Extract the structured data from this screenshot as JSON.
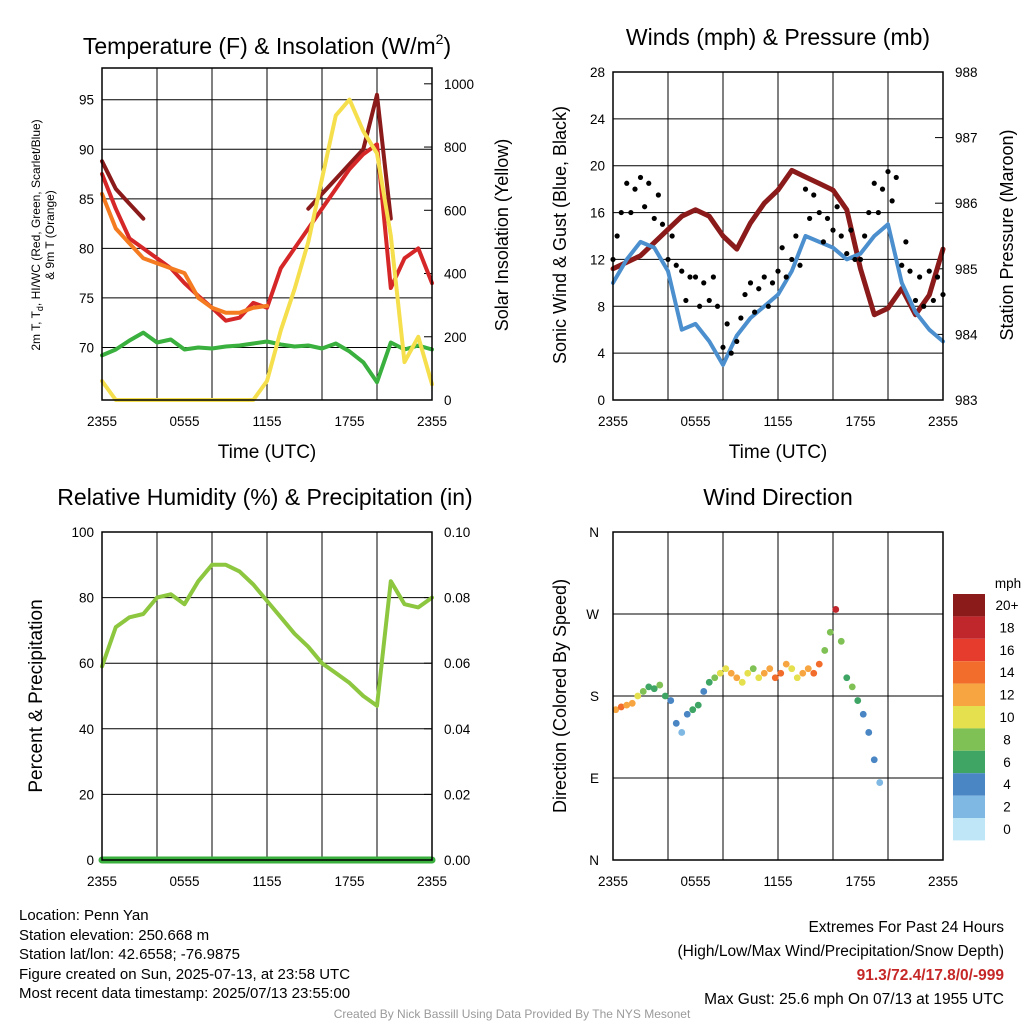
{
  "panels": {
    "temperature": {
      "title": "Temperature (F) & Insolation (W/m",
      "title_sup": "2",
      "title_close": ")",
      "ylabel_left_line1": "2m T, T",
      "ylabel_left_sub": "d",
      "ylabel_left_line1b": ", HI/WC (Red, Green, Scarlet/Blue)",
      "ylabel_left_line2": "& 9m T (Orange)",
      "ylabel_right": "Solar Insolation (Yellow)",
      "xlabel": "Time (UTC)"
    },
    "winds": {
      "title": "Winds (mph) & Pressure (mb)",
      "ylabel_left": "Sonic Wind & Gust (Blue, Black)",
      "ylabel_right": "Station Pressure (Maroon)",
      "xlabel": "Time (UTC)"
    },
    "humidity": {
      "title": "Relative Humidity (%) & Precipitation (in)",
      "ylabel_left": "Percent & Precipitation"
    },
    "direction": {
      "title": "Wind Direction",
      "ylabel_left": "Direction (Colored By Speed)",
      "legend_title": "mph"
    }
  },
  "chart_data": [
    {
      "type": "line",
      "x_ticks": [
        "2355",
        "0555",
        "1155",
        "1755",
        "2355"
      ],
      "x": [
        0,
        1,
        2,
        3,
        4,
        5,
        6,
        7,
        8,
        9,
        10,
        11,
        12,
        13,
        14,
        15,
        16,
        17,
        18,
        19,
        20,
        21,
        22,
        23,
        24
      ],
      "y_left_ticks": [
        70,
        75,
        80,
        85,
        90,
        95
      ],
      "y_left_lim": [
        64.7,
        98.2
      ],
      "y_right_ticks": [
        0,
        200,
        400,
        600,
        800,
        1000
      ],
      "y_right_lim": [
        0,
        1050
      ],
      "series": [
        {
          "color": "#8b1a1a",
          "axis": "left",
          "values": [
            88.8,
            86,
            84.5,
            83,
            null,
            null,
            null,
            null,
            null,
            null,
            null,
            null,
            null,
            null,
            null,
            84,
            85.5,
            87,
            88.5,
            90,
            95.5,
            83,
            null,
            null,
            null
          ]
        },
        {
          "color": "#d62728",
          "axis": "left",
          "values": [
            87.5,
            84,
            81,
            80,
            79,
            78,
            76.5,
            75.2,
            74,
            72.7,
            73,
            74.5,
            74,
            78,
            80,
            82,
            84,
            86,
            88,
            89.5,
            90.5,
            76,
            79,
            80,
            76.5
          ]
        },
        {
          "color": "#f47b20",
          "axis": "left",
          "values": [
            85.5,
            82,
            80.5,
            79,
            78.5,
            78,
            77.5,
            75,
            74,
            73.5,
            73.5,
            74,
            74.2,
            null,
            null,
            null,
            null,
            null,
            null,
            null,
            null,
            null,
            null,
            null,
            null
          ]
        },
        {
          "color": "#3ab03e",
          "axis": "left",
          "values": [
            69.2,
            69.8,
            70.7,
            71.5,
            70.5,
            70.8,
            69.8,
            70,
            69.9,
            70.1,
            70.2,
            70.4,
            70.6,
            70.3,
            70.1,
            70.2,
            69.9,
            70.4,
            69.6,
            68.5,
            66.5,
            70.5,
            69.8,
            70.2,
            69.8
          ]
        },
        {
          "color": "#f5df4d",
          "axis": "right",
          "values": [
            60,
            0,
            0,
            0,
            0,
            0,
            0,
            0,
            0,
            0,
            0,
            0,
            60,
            220,
            350,
            500,
            700,
            900,
            950,
            850,
            780,
            520,
            120,
            200,
            50
          ]
        }
      ]
    },
    {
      "type": "line",
      "x_ticks": [
        "2355",
        "0555",
        "1155",
        "1755",
        "2355"
      ],
      "x": [
        0,
        1,
        2,
        3,
        4,
        5,
        6,
        7,
        8,
        9,
        10,
        11,
        12,
        13,
        14,
        15,
        16,
        17,
        18,
        19,
        20,
        21,
        22,
        23,
        24
      ],
      "y_left_ticks": [
        0,
        4,
        8,
        12,
        16,
        20,
        24,
        28
      ],
      "y_left_lim": [
        0,
        28
      ],
      "y_right_ticks": [
        983,
        984,
        985,
        986,
        987,
        988
      ],
      "y_right_lim": [
        983,
        988
      ],
      "series": [
        {
          "color": "#8b1a1a",
          "axis": "right",
          "values": [
            985.0,
            985.1,
            985.2,
            985.4,
            985.6,
            985.8,
            985.9,
            985.8,
            985.5,
            985.3,
            985.7,
            986.0,
            986.2,
            986.5,
            986.4,
            986.3,
            986.2,
            985.9,
            985.0,
            984.3,
            984.4,
            984.7,
            984.3,
            984.6,
            985.3
          ]
        },
        {
          "color": "#4b8fce",
          "axis": "left",
          "values": [
            10,
            12,
            13.5,
            13,
            11,
            6,
            6.5,
            5,
            3,
            5.5,
            7,
            8,
            9,
            11,
            14,
            13.5,
            13,
            12,
            12.5,
            14,
            15,
            10,
            7.5,
            6,
            5
          ]
        },
        {
          "color": "#000000",
          "axis": "left",
          "mode": "points",
          "values": [
            14,
            17,
            18.5,
            16,
            13.5,
            9,
            9.5,
            8.5,
            5.5,
            7,
            8.5,
            10,
            11.5,
            13.5,
            16,
            15,
            14.5,
            13.5,
            14,
            17,
            19,
            12,
            10,
            9,
            8
          ]
        }
      ]
    },
    {
      "type": "line",
      "x_ticks": [
        "2355",
        "0555",
        "1155",
        "1755",
        "2355"
      ],
      "x": [
        0,
        1,
        2,
        3,
        4,
        5,
        6,
        7,
        8,
        9,
        10,
        11,
        12,
        13,
        14,
        15,
        16,
        17,
        18,
        19,
        20,
        21,
        22,
        23,
        24
      ],
      "y_left_ticks": [
        0,
        20,
        40,
        60,
        80,
        100
      ],
      "y_left_lim": [
        0,
        100
      ],
      "y_right_ticks": [
        "0.00",
        "0.02",
        "0.04",
        "0.06",
        "0.08",
        "0.10"
      ],
      "y_right_lim": [
        0,
        0.1
      ],
      "series": [
        {
          "color": "#8dc63f",
          "axis": "left",
          "values": [
            59,
            71,
            74,
            75,
            80,
            81,
            78,
            85,
            90,
            90,
            88,
            84,
            79,
            74,
            69,
            65,
            60,
            57,
            54,
            50,
            47,
            85,
            78,
            77,
            80
          ]
        },
        {
          "color": "#3ab03e",
          "axis": "right",
          "values": [
            0,
            0,
            0,
            0,
            0,
            0,
            0,
            0,
            0,
            0,
            0,
            0,
            0,
            0,
            0,
            0,
            0,
            0,
            0,
            0,
            0,
            0,
            0,
            0,
            0
          ]
        }
      ]
    },
    {
      "type": "scatter",
      "x_ticks": [
        "2355",
        "0555",
        "1155",
        "1755",
        "2355"
      ],
      "y_ticks": [
        "N",
        "E",
        "S",
        "W",
        "N"
      ],
      "y_lim": [
        0,
        360
      ],
      "legend_labels": [
        "20+",
        "18",
        "16",
        "14",
        "12",
        "10",
        "8",
        "6",
        "4",
        "2",
        "0"
      ],
      "legend_colors": [
        "#8b1a1a",
        "#c0272d",
        "#e53c2e",
        "#f26c2c",
        "#f7a541",
        "#e5e04d",
        "#80c155",
        "#3ea564",
        "#4a86c4",
        "#7fb8e3",
        "#bfe6f7"
      ],
      "points": [
        [
          0.2,
          165,
          12
        ],
        [
          0.6,
          168,
          13
        ],
        [
          1.0,
          170,
          12
        ],
        [
          1.4,
          172,
          11
        ],
        [
          1.8,
          180,
          9
        ],
        [
          2.2,
          185,
          7
        ],
        [
          2.6,
          190,
          6
        ],
        [
          3.0,
          188,
          6
        ],
        [
          3.4,
          192,
          7
        ],
        [
          3.8,
          180,
          5
        ],
        [
          4.2,
          175,
          4
        ],
        [
          4.6,
          150,
          3
        ],
        [
          5.0,
          140,
          2
        ],
        [
          5.4,
          160,
          4
        ],
        [
          5.8,
          165,
          5
        ],
        [
          6.2,
          170,
          6
        ],
        [
          6.6,
          185,
          4
        ],
        [
          7.0,
          195,
          5
        ],
        [
          7.4,
          200,
          7
        ],
        [
          7.8,
          205,
          9
        ],
        [
          8.2,
          210,
          10
        ],
        [
          8.6,
          205,
          11
        ],
        [
          9.0,
          200,
          12
        ],
        [
          9.4,
          195,
          10
        ],
        [
          9.8,
          205,
          9
        ],
        [
          10.2,
          210,
          8
        ],
        [
          10.6,
          200,
          10
        ],
        [
          11.0,
          205,
          11
        ],
        [
          11.4,
          210,
          12
        ],
        [
          11.8,
          200,
          13
        ],
        [
          12.2,
          205,
          14
        ],
        [
          12.6,
          215,
          12
        ],
        [
          13.0,
          210,
          10
        ],
        [
          13.4,
          200,
          9
        ],
        [
          13.8,
          205,
          11
        ],
        [
          14.2,
          210,
          12
        ],
        [
          14.6,
          205,
          14
        ],
        [
          15.0,
          215,
          13
        ],
        [
          15.4,
          230,
          8
        ],
        [
          15.8,
          250,
          7
        ],
        [
          16.2,
          275,
          18
        ],
        [
          16.6,
          240,
          8
        ],
        [
          17.0,
          200,
          6
        ],
        [
          17.4,
          190,
          8
        ],
        [
          17.8,
          175,
          5
        ],
        [
          18.2,
          160,
          4
        ],
        [
          18.6,
          140,
          4
        ],
        [
          19.0,
          110,
          3
        ],
        [
          19.4,
          85,
          1
        ]
      ]
    }
  ],
  "info": {
    "location": "Location: Penn Yan",
    "elevation": "Station elevation: 250.668 m",
    "latlon": "Station lat/lon: 42.6558; -76.9875",
    "created": "Figure created on Sun, 2025-07-13, at 23:58 UTC",
    "recent": "Most recent data timestamp: 2025/07/13 23:55:00",
    "extremes_title": "Extremes For Past 24 Hours",
    "extremes_desc": "(High/Low/Max Wind/Precipitation/Snow Depth)",
    "extremes_values": "91.3/72.4/17.8/0/-999",
    "max_gust": "Max Gust: 25.6 mph On 07/13 at 1955 UTC",
    "credit": "Created By Nick Bassill Using Data Provided By The NYS Mesonet"
  }
}
